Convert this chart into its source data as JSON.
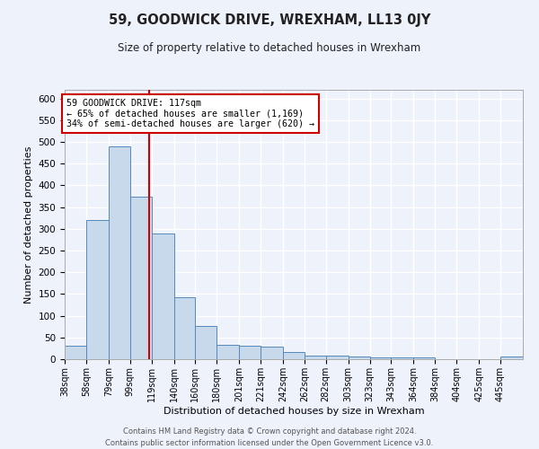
{
  "title": "59, GOODWICK DRIVE, WREXHAM, LL13 0JY",
  "subtitle": "Size of property relative to detached houses in Wrexham",
  "xlabel": "Distribution of detached houses by size in Wrexham",
  "ylabel": "Number of detached properties",
  "footer_line1": "Contains HM Land Registry data © Crown copyright and database right 2024.",
  "footer_line2": "Contains public sector information licensed under the Open Government Licence v3.0.",
  "categories": [
    "38sqm",
    "58sqm",
    "79sqm",
    "99sqm",
    "119sqm",
    "140sqm",
    "160sqm",
    "180sqm",
    "201sqm",
    "221sqm",
    "242sqm",
    "262sqm",
    "282sqm",
    "303sqm",
    "323sqm",
    "343sqm",
    "364sqm",
    "384sqm",
    "404sqm",
    "425sqm",
    "445sqm"
  ],
  "values": [
    30,
    320,
    490,
    375,
    290,
    143,
    77,
    33,
    30,
    28,
    16,
    8,
    8,
    7,
    5,
    5,
    5,
    0,
    0,
    0,
    6
  ],
  "bar_color": "#c9d9ec",
  "bar_edge_color": "#5588bb",
  "annotation_box_text_line1": "59 GOODWICK DRIVE: 117sqm",
  "annotation_box_text_line2": "← 65% of detached houses are smaller (1,169)",
  "annotation_box_text_line3": "34% of semi-detached houses are larger (620) →",
  "property_line_x": 117,
  "ylim": [
    0,
    620
  ],
  "background_color": "#eef2fb",
  "grid_color": "#ffffff",
  "annotation_box_color": "#ffffff",
  "annotation_box_edge_color": "#cc0000",
  "vline_color": "#cc0000",
  "bin_edges": [
    38,
    58,
    79,
    99,
    119,
    140,
    160,
    180,
    201,
    221,
    242,
    262,
    282,
    303,
    323,
    343,
    364,
    384,
    404,
    425,
    445
  ]
}
